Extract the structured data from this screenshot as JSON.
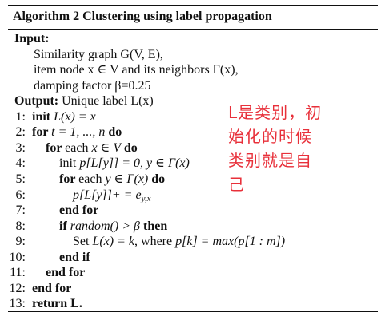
{
  "algorithm": {
    "title_prefix": "Algorithm 2",
    "title_text": "Clustering using label propagation",
    "input_label": "Input:",
    "input_lines": [
      "Similarity graph G(V, E),",
      "item node x ∈ V and its neighbors Γ(x),",
      "damping factor β=0.25"
    ],
    "output_label": "Output:",
    "output_text": "Unique label L(x)",
    "steps": [
      {
        "num": "1:",
        "parts": [
          {
            "t": "init ",
            "k": "kw"
          },
          {
            "t": "L(x) = x",
            "k": "m"
          }
        ]
      },
      {
        "num": "2:",
        "parts": [
          {
            "t": "for ",
            "k": "kw"
          },
          {
            "t": "t = 1, ..., n ",
            "k": "m"
          },
          {
            "t": "do",
            "k": "kw"
          }
        ]
      },
      {
        "num": "3:",
        "parts": [
          {
            "t": "for ",
            "k": "kw"
          },
          {
            "t": "each ",
            "k": ""
          },
          {
            "t": "x ∈ V ",
            "k": "m"
          },
          {
            "t": "do",
            "k": "kw"
          }
        ]
      },
      {
        "num": "4:",
        "parts": [
          {
            "t": "init ",
            "k": ""
          },
          {
            "t": "p[L[y]] = 0,  y ∈ Γ(x)",
            "k": "m"
          }
        ]
      },
      {
        "num": "5:",
        "parts": [
          {
            "t": "for ",
            "k": "kw"
          },
          {
            "t": "each ",
            "k": ""
          },
          {
            "t": "y ∈ Γ(x) ",
            "k": "m"
          },
          {
            "t": "do",
            "k": "kw"
          }
        ]
      },
      {
        "num": "6:",
        "parts": [
          {
            "t": "p[L[y]]+ = e",
            "k": "m"
          },
          {
            "t": "y,x",
            "k": "sub"
          }
        ]
      },
      {
        "num": "7:",
        "parts": [
          {
            "t": "end for",
            "k": "kw"
          }
        ]
      },
      {
        "num": "8:",
        "parts": [
          {
            "t": "if ",
            "k": "kw"
          },
          {
            "t": "random() > β ",
            "k": "m"
          },
          {
            "t": "then",
            "k": "kw"
          }
        ]
      },
      {
        "num": "9:",
        "parts": [
          {
            "t": "Set ",
            "k": ""
          },
          {
            "t": "L(x) = k",
            "k": "m"
          },
          {
            "t": ", where ",
            "k": ""
          },
          {
            "t": "p[k] = max(p[1 : m])",
            "k": "m"
          }
        ]
      },
      {
        "num": "10:",
        "parts": [
          {
            "t": "end if",
            "k": "kw"
          }
        ]
      },
      {
        "num": "11:",
        "parts": [
          {
            "t": "end for",
            "k": "kw"
          }
        ]
      },
      {
        "num": "12:",
        "parts": [
          {
            "t": "end for",
            "k": "kw"
          }
        ]
      },
      {
        "num": "13:",
        "parts": [
          {
            "t": "return L.",
            "k": "kw"
          }
        ]
      }
    ]
  },
  "annotation": {
    "text": "L是类别，初始化的时候类别就是自己",
    "color": "#e8303a"
  }
}
